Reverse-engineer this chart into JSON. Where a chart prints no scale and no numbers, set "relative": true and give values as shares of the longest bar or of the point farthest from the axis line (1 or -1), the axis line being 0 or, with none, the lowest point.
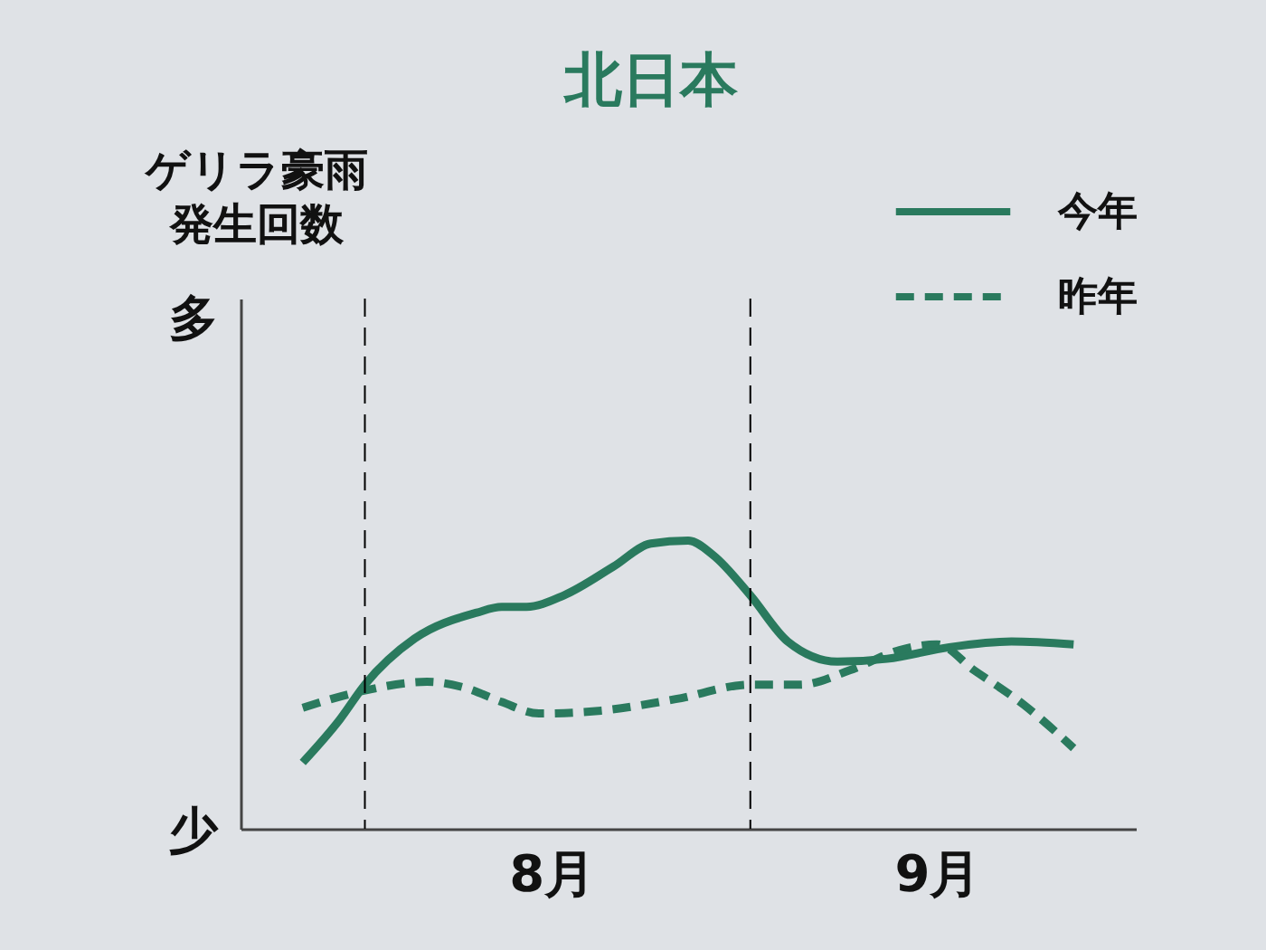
{
  "chart_data": {
    "type": "line",
    "title": "北日本",
    "relative": true,
    "annotations": [
      "ゲリラ豪雨発生回数",
      "多",
      "少"
    ],
    "xlim": [
      "--07-22",
      "--10-02"
    ],
    "xticks": [
      {
        "value": "--08-16",
        "label": "8月"
      },
      {
        "value": "--09-16",
        "label": "9月"
      }
    ],
    "ref_lines": [
      {
        "axis": "x",
        "value": "--08-01",
        "color": "#000000",
        "line_style": "dashed"
      },
      {
        "axis": "x",
        "value": "--09-01",
        "color": "#000000",
        "line_style": "dashed"
      }
    ],
    "legend": "top right",
    "grid": false,
    "series": [
      {
        "name": "今年",
        "color": "#2a7a5e",
        "line_style": "solid",
        "x": [
          "--07-27",
          "--07-30",
          "--08-01",
          "--08-05",
          "--08-10",
          "--08-12",
          "--08-14",
          "--08-17",
          "--08-21",
          "--08-24",
          "--08-27",
          "--08-29",
          "--09-01",
          "--09-04",
          "--09-08",
          "--09-12",
          "--09-17",
          "--09-22",
          "--09-27"
        ],
        "values": [
          0.23,
          0.38,
          0.5,
          0.66,
          0.75,
          0.77,
          0.77,
          0.81,
          0.91,
          0.99,
          1.0,
          0.95,
          0.81,
          0.65,
          0.58,
          0.59,
          0.63,
          0.65,
          0.64
        ]
      },
      {
        "name": "昨年",
        "color": "#2a7a5e",
        "line_style": "dashed",
        "x": [
          "--07-27",
          "--08-01",
          "--08-06",
          "--08-09",
          "--08-12",
          "--08-15",
          "--08-20",
          "--08-26",
          "--09-01",
          "--09-05",
          "--09-09",
          "--09-13",
          "--09-16",
          "--09-19",
          "--09-23",
          "--09-27"
        ],
        "values": [
          0.42,
          0.48,
          0.51,
          0.49,
          0.44,
          0.4,
          0.41,
          0.45,
          0.5,
          0.5,
          0.55,
          0.62,
          0.64,
          0.55,
          0.43,
          0.28
        ]
      }
    ]
  }
}
